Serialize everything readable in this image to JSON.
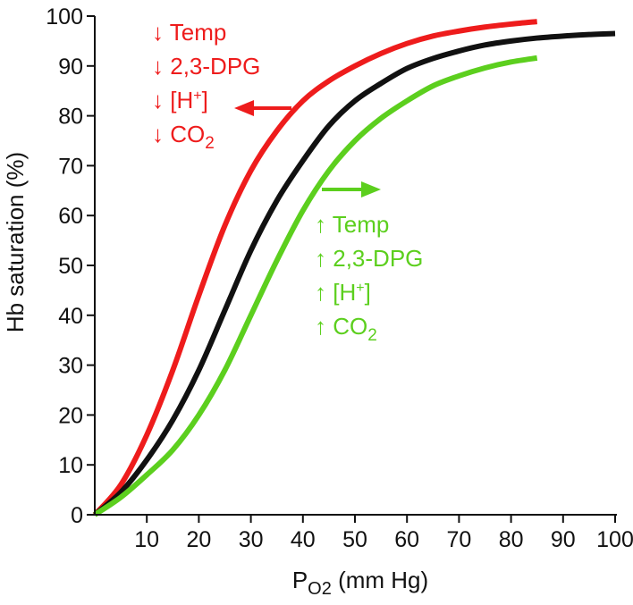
{
  "chart_data": {
    "type": "line",
    "title": "",
    "xlabel": {
      "main": "P",
      "subscript": "O2",
      "suffix": " (mm Hg)"
    },
    "ylabel": "Hb saturation (%)",
    "xlim": [
      0,
      100
    ],
    "ylim": [
      0,
      100
    ],
    "xticks": [
      10,
      20,
      30,
      40,
      50,
      60,
      70,
      80,
      90,
      100
    ],
    "yticks": [
      0,
      10,
      20,
      30,
      40,
      50,
      60,
      70,
      80,
      90,
      100
    ],
    "grid": false,
    "series": [
      {
        "color": "#ee1c1c",
        "x": [
          0,
          5,
          10,
          15,
          20,
          25,
          30,
          35,
          40,
          45,
          50,
          55,
          60,
          65,
          70,
          75,
          80,
          85
        ],
        "values": [
          0,
          6,
          16,
          29,
          44,
          58,
          69,
          77,
          83,
          87,
          90,
          92.5,
          94.5,
          96,
          97,
          97.8,
          98.4,
          98.9
        ]
      },
      {
        "color": "#111111",
        "x": [
          0,
          5,
          10,
          15,
          20,
          25,
          30,
          35,
          40,
          45,
          50,
          55,
          60,
          65,
          70,
          75,
          80,
          85,
          90,
          95,
          100
        ],
        "values": [
          0,
          4.5,
          11,
          19,
          29,
          41,
          53,
          63,
          71,
          78,
          83,
          86.5,
          89.5,
          91.5,
          93,
          94.2,
          95,
          95.6,
          96,
          96.3,
          96.5
        ]
      },
      {
        "color": "#5ccf1e",
        "x": [
          0,
          5,
          10,
          15,
          20,
          25,
          30,
          35,
          40,
          45,
          50,
          55,
          60,
          65,
          70,
          75,
          80,
          85
        ],
        "values": [
          0,
          3.5,
          8,
          13,
          20,
          29,
          40,
          51,
          61,
          69,
          75,
          79.5,
          83,
          86,
          88,
          89.6,
          90.8,
          91.6
        ]
      }
    ],
    "annotations": {
      "left": {
        "color": "#ee1c1c",
        "arrow_glyph": "↓",
        "items": [
          {
            "text": "Temp",
            "sub": ""
          },
          {
            "text": "2,3-DPG",
            "sub": ""
          },
          {
            "text": "[H",
            "sup": "+",
            "tail": "]"
          },
          {
            "text": "CO",
            "sub": "2"
          }
        ],
        "shift_arrow": "left"
      },
      "right": {
        "color": "#5ccf1e",
        "arrow_glyph": "↑",
        "items": [
          {
            "text": "Temp",
            "sub": ""
          },
          {
            "text": "2,3-DPG",
            "sub": ""
          },
          {
            "text": "[H",
            "sup": "+",
            "tail": "]"
          },
          {
            "text": "CO",
            "sub": "2"
          }
        ],
        "shift_arrow": "right"
      }
    }
  }
}
